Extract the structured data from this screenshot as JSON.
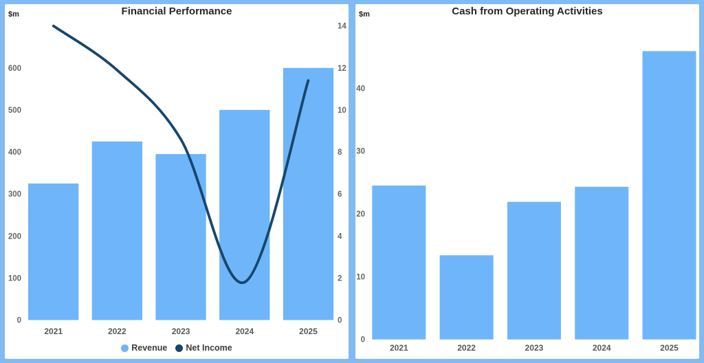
{
  "page": {
    "background_color": "#82baf3",
    "card_color": "#ffffff"
  },
  "text_colors": {
    "title": "#272727",
    "axis_tick": "#666666",
    "category_label": "#575757",
    "legend_text": "#3c3c3c",
    "unit_label": "#1f1f1f"
  },
  "chart_data": [
    {
      "id": "financial",
      "type": "bar",
      "subtype": "combo-bar-line",
      "title": "Financial Performance",
      "unit_label": "$m",
      "categories": [
        "2021",
        "2022",
        "2023",
        "2024",
        "2025"
      ],
      "series": [
        {
          "name": "Revenue",
          "type": "bar",
          "axis": "left",
          "color": "#6fb5f9",
          "values": [
            325,
            425,
            395,
            500,
            600
          ]
        },
        {
          "name": "Net Income",
          "type": "line",
          "axis": "right",
          "color": "#17466e",
          "values": [
            14,
            11.9,
            8.6,
            1.8,
            11.4
          ]
        }
      ],
      "left_axis": {
        "ticks": [
          0,
          100,
          200,
          300,
          400,
          500,
          600
        ],
        "range": [
          0,
          700
        ]
      },
      "right_axis": {
        "ticks": [
          0,
          2,
          4,
          6,
          8,
          10,
          12,
          14
        ],
        "range": [
          0,
          14
        ]
      },
      "legend_position": "bottom",
      "gridlines": false
    },
    {
      "id": "cash",
      "type": "bar",
      "title": "Cash from Operating Activities",
      "unit_label": "$m",
      "categories": [
        "2021",
        "2022",
        "2023",
        "2024",
        "2025"
      ],
      "values": [
        24.5,
        13.4,
        21.9,
        24.3,
        45.9
      ],
      "color": "#6fb5f9",
      "y_axis": {
        "ticks": [
          0,
          10,
          20,
          30,
          40
        ],
        "range": [
          0,
          47
        ]
      },
      "legend_position": "none",
      "gridlines": false
    }
  ]
}
